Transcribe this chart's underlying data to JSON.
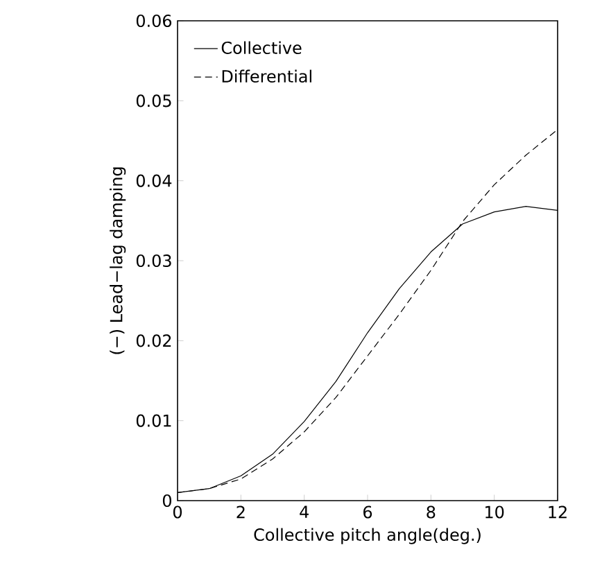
{
  "chart_data": {
    "type": "line",
    "xlabel": "Collective pitch angle(deg.)",
    "ylabel": "(−) Lead−lag damping",
    "x": [
      0,
      1,
      2,
      3,
      4,
      5,
      6,
      7,
      8,
      9,
      10,
      11,
      12
    ],
    "series": [
      {
        "name": "Collective",
        "color": "#000000",
        "line_style": "solid",
        "values": [
          0.001,
          0.0015,
          0.0031,
          0.0058,
          0.0099,
          0.0149,
          0.021,
          0.0265,
          0.0311,
          0.0346,
          0.0361,
          0.0368,
          0.0363
        ]
      },
      {
        "name": "Differential",
        "color": "#000000",
        "line_style": "dashed",
        "values": [
          0.001,
          0.0015,
          0.0027,
          0.0052,
          0.0086,
          0.0129,
          0.0181,
          0.0233,
          0.0288,
          0.0349,
          0.0395,
          0.0432,
          0.0464
        ]
      }
    ],
    "xlim": [
      0,
      12
    ],
    "ylim": [
      0,
      0.06
    ],
    "xticks": [
      0,
      2,
      4,
      6,
      8,
      10,
      12
    ],
    "yticks": [
      0,
      {
        "value": 0.01,
        "label": "0.01"
      },
      {
        "value": 0.02,
        "label": "0.02"
      },
      {
        "value": 0.03,
        "label": "0.03"
      },
      {
        "value": 0.04,
        "label": "0.04"
      },
      {
        "value": 0.05,
        "label": "0.05"
      },
      {
        "value": 0.06,
        "label": "0.06"
      }
    ],
    "legend": "top left",
    "grid": false,
    "marker": "none"
  }
}
